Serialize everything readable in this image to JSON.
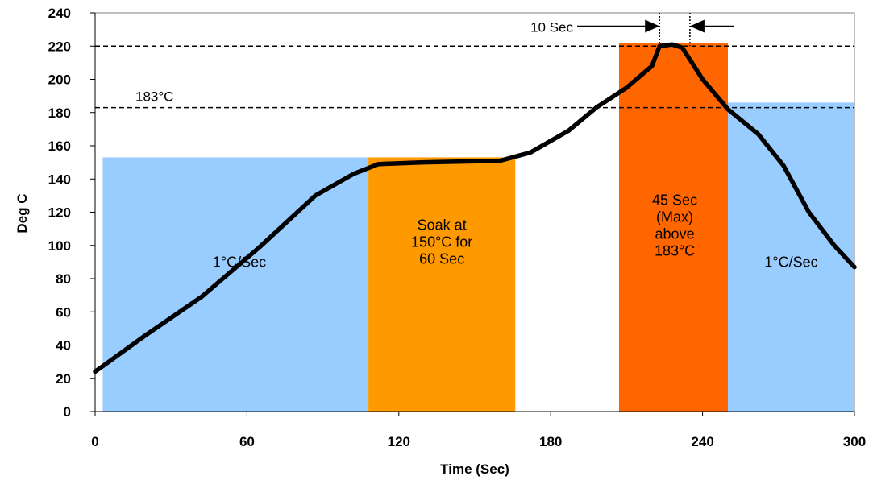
{
  "chart_data": {
    "type": "line",
    "title": "",
    "xlabel": "Time (Sec)",
    "ylabel": "Deg C",
    "xlim": [
      0,
      300
    ],
    "ylim": [
      0,
      240
    ],
    "x_ticks": [
      0,
      60,
      120,
      180,
      240,
      300
    ],
    "y_ticks": [
      0,
      20,
      40,
      60,
      80,
      100,
      120,
      140,
      160,
      180,
      200,
      220,
      240
    ],
    "grid": false,
    "series": [
      {
        "x": [
          0,
          20,
          42,
          65,
          87,
          102,
          112,
          130,
          160,
          172,
          187,
          198,
          210,
          220,
          223,
          228,
          232,
          240,
          250,
          262,
          272,
          282,
          292,
          300
        ],
        "y": [
          24,
          46,
          69,
          99,
          130,
          143,
          149,
          150,
          151,
          156,
          169,
          183,
          195,
          208,
          220,
          221,
          219,
          200,
          182,
          167,
          148,
          120,
          100,
          87
        ],
        "color": "#000000"
      }
    ],
    "regions": [
      {
        "x0": 3,
        "x1": 108,
        "top": 153,
        "color": "#99ccff",
        "label": [
          "1°C/Sec"
        ],
        "label_x": 57,
        "label_y": 90
      },
      {
        "x0": 108,
        "x1": 166,
        "top": 153,
        "color": "#ff9900",
        "label": [
          "Soak at",
          "150°C for",
          "60 Sec"
        ],
        "label_x": 137,
        "label_y": 102
      },
      {
        "x0": 207,
        "x1": 250,
        "top": 222,
        "color": "#ff6600",
        "label": [
          "45 Sec",
          "(Max)",
          "above",
          "183°C"
        ],
        "label_x": 229,
        "label_y": 112
      },
      {
        "x0": 250,
        "x1": 300,
        "top": 186,
        "color": "#99ccff",
        "label": [
          "1°C/Sec"
        ],
        "label_x": 275,
        "label_y": 90
      }
    ],
    "reference_lines": [
      {
        "y": 220,
        "label": ""
      },
      {
        "y": 183,
        "label": "183°C"
      }
    ],
    "annotations": [
      {
        "text": "10 Sec",
        "x_from": 223,
        "x_to": 235,
        "y": 232
      }
    ]
  }
}
